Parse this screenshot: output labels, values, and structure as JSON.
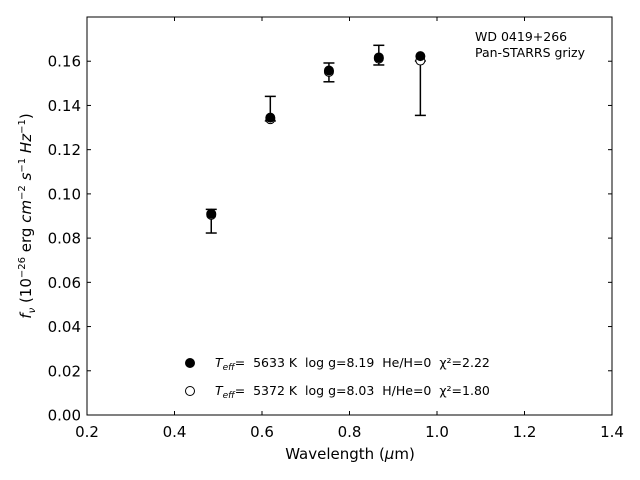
{
  "chart_data": {
    "type": "scatter",
    "title": "",
    "xlabel": "Wavelength (μm)",
    "ylabel": "f_ν (10^−26 erg cm^−2 s^−1 Hz^−1)",
    "xlim": [
      0.2,
      1.4
    ],
    "ylim": [
      0.0,
      0.18
    ],
    "x_ticks": [
      0.2,
      0.4,
      0.6,
      0.8,
      1.0,
      1.2,
      1.4
    ],
    "y_ticks": [
      0.0,
      0.02,
      0.04,
      0.06,
      0.08,
      0.1,
      0.12,
      0.14,
      0.16
    ],
    "x_tick_labels": [
      "0.2",
      "0.4",
      "0.6",
      "0.8",
      "1.0",
      "1.2",
      "1.4"
    ],
    "y_tick_labels": [
      "0.00",
      "0.02",
      "0.04",
      "0.06",
      "0.08",
      "0.10",
      "0.12",
      "0.14",
      "0.16"
    ],
    "grid": false,
    "annotation": [
      "WD 0419+266",
      "Pan-STARRS grizy"
    ],
    "observed": {
      "x": [
        0.484,
        0.619,
        0.753,
        0.867,
        0.962
      ],
      "y": [
        0.0885,
        0.1335,
        0.155,
        0.1625,
        0.1478
      ],
      "yerr_low": [
        0.0062,
        0.0005,
        0.0043,
        0.0042,
        0.0123
      ],
      "yerr_high": [
        0.0045,
        0.0106,
        0.0042,
        0.0047,
        0.0123
      ]
    },
    "series": [
      {
        "marker": "filled-circle",
        "x": [
          0.484,
          0.619,
          0.753,
          0.867,
          0.962
        ],
        "y": [
          0.091,
          0.1345,
          0.1558,
          0.1617,
          0.1623
        ],
        "legend_prefix": "T",
        "legend_sub": "eff",
        "legend_rest": "=  5633 K  log g=8.19  He/H=0  χ²=2.22"
      },
      {
        "marker": "open-circle",
        "x": [
          0.484,
          0.619,
          0.753,
          0.867,
          0.962
        ],
        "y": [
          0.0905,
          0.1338,
          0.1552,
          0.1612,
          0.1603
        ],
        "legend_prefix": "T",
        "legend_sub": "eff",
        "legend_rest": "=  5372 K  log g=8.03  H/He=0  χ²=1.80"
      }
    ],
    "legend_position": "lower-center",
    "colors": {
      "marker": "#000000",
      "axes": "#000000",
      "background": "#ffffff"
    }
  }
}
